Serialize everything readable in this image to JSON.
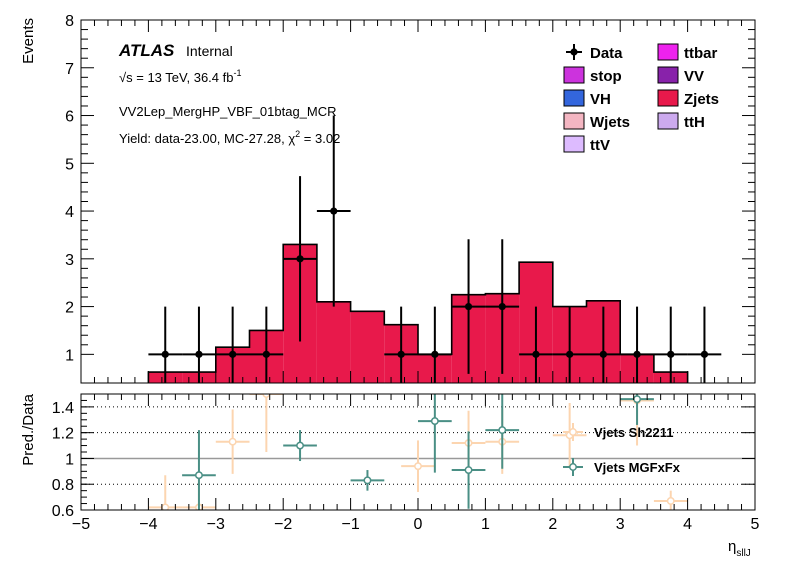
{
  "chart_data": {
    "type": "bar",
    "atlas_label": "ATLAS",
    "atlas_status": "Internal",
    "energy_label": "√s = 13 TeV, 36.4 fb",
    "energy_label_sup": "-1",
    "region_label": "VV2Lep_MergHP_VBF_01btag_MCR",
    "yield_label": "Yield: data-23.00, MC-27.28, χ",
    "yield_label_sup": "2",
    "yield_label_tail": " = 3.02",
    "ylabel": "Events",
    "ratio_ylabel": "Pred./Data",
    "xlabel": "η",
    "xlabel_sub": "sllJ",
    "xlim": [
      -5,
      5
    ],
    "ylim": [
      0.4,
      8
    ],
    "ratio_ylim": [
      0.6,
      1.5
    ],
    "x_ticks": [
      "−5",
      "−4",
      "−3",
      "−2",
      "−1",
      "0",
      "1",
      "2",
      "3",
      "4",
      "5"
    ],
    "y_ticks": [
      "1",
      "2",
      "3",
      "4",
      "5",
      "6",
      "7",
      "8"
    ],
    "ratio_ticks": [
      "0.6",
      "0.8",
      "1",
      "1.2",
      "1.4"
    ],
    "legend": [
      {
        "label": "Data",
        "type": "marker",
        "color": "#000000"
      },
      {
        "label": "ttbar",
        "type": "box",
        "color": "#ee22ee"
      },
      {
        "label": "stop",
        "type": "box",
        "color": "#cc33dd"
      },
      {
        "label": "VV",
        "type": "box",
        "color": "#8822aa"
      },
      {
        "label": "VH",
        "type": "box",
        "color": "#3366dd"
      },
      {
        "label": "Zjets",
        "type": "box",
        "color": "#e8194b"
      },
      {
        "label": "Wjets",
        "type": "box",
        "color": "#f4b6c2"
      },
      {
        "label": "ttH",
        "type": "box",
        "color": "#ccaaee"
      },
      {
        "label": "ttV",
        "type": "box",
        "color": "#ddbbff"
      }
    ],
    "zjets_hist": {
      "name": "Zjets",
      "color": "#e8194b",
      "bin_edges": [
        -4,
        -3.5,
        -3,
        -2.5,
        -2,
        -1.5,
        -1,
        -0.5,
        0,
        0.5,
        1,
        1.5,
        2,
        2.5,
        3,
        3.5,
        4
      ],
      "values": [
        0.63,
        0.63,
        1.15,
        1.5,
        3.3,
        2.1,
        1.9,
        1.62,
        1.0,
        2.25,
        2.27,
        2.93,
        2.0,
        2.12,
        1.0,
        0.63
      ]
    },
    "data_points": {
      "name": "Data",
      "x": [
        -3.75,
        -3.25,
        -2.75,
        -2.25,
        -1.75,
        -1.25,
        -0.25,
        0.25,
        0.75,
        1.25,
        1.75,
        2.25,
        2.75,
        3.25,
        3.75,
        4.25
      ],
      "y": [
        1,
        1,
        1,
        1,
        3,
        4,
        1,
        1,
        2,
        2,
        1,
        1,
        1,
        1,
        1,
        1
      ],
      "err_up": [
        1.0,
        1.0,
        1.0,
        1.0,
        1.73,
        2.0,
        1.0,
        1.0,
        1.41,
        1.41,
        1.0,
        1.0,
        1.0,
        1.0,
        1.0,
        1.0
      ],
      "err_down": [
        1.0,
        1.0,
        1.0,
        1.0,
        1.73,
        2.0,
        1.0,
        1.0,
        1.41,
        1.41,
        1.0,
        1.0,
        1.0,
        1.0,
        1.0,
        1.0
      ],
      "x_half_width": 0.25
    },
    "ratio_series": [
      {
        "name": "Vjets Sh2211",
        "color": "#fcd5b0",
        "x": [
          -3.75,
          -3.25,
          -2.75,
          -2.25,
          0,
          0.75,
          1.25,
          2.25,
          3.25,
          3.75
        ],
        "y": [
          0.62,
          0.62,
          1.13,
          1.5,
          0.94,
          1.12,
          1.13,
          1.18,
          1.45,
          0.67
        ],
        "err": [
          0.25,
          0.25,
          0.25,
          0.45,
          0.2,
          0.25,
          0.25,
          0.25,
          0.35,
          0.08
        ]
      },
      {
        "name": "Vjets MGFxFx",
        "color": "#4a8f85",
        "x": [
          -3.25,
          -1.75,
          -0.75,
          0.25,
          0.75,
          1.25,
          3.25
        ],
        "y": [
          0.87,
          1.1,
          0.83,
          1.29,
          0.91,
          1.22,
          1.46
        ],
        "err": [
          0.35,
          0.12,
          0.08,
          0.4,
          0.3,
          0.3,
          0.2
        ]
      }
    ],
    "grid": "dotted reference lines in ratio panel",
    "legend_position": "top-right"
  }
}
